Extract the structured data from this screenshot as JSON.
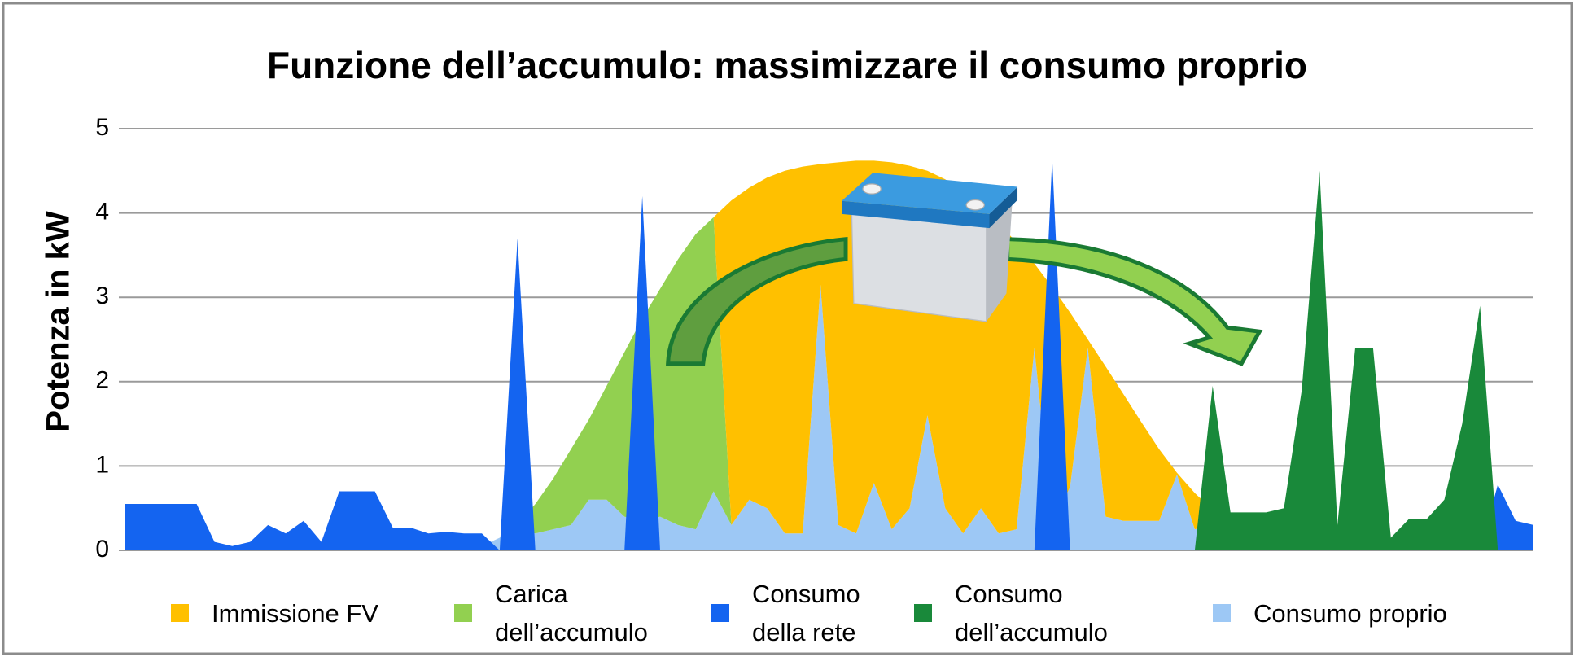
{
  "chart_data": {
    "type": "area",
    "title": "Funzione dell’accumulo: massimizzare il consumo proprio",
    "y_label": "Potenza in kW",
    "ylim": [
      0,
      5
    ],
    "yticks": [
      0,
      1,
      2,
      3,
      4,
      5
    ],
    "grid": true,
    "legend": "bottom",
    "series": [
      {
        "name": "Immissione FV",
        "color": "#FFC000",
        "stacked": true,
        "values": [
          0,
          0,
          0,
          0,
          0,
          0,
          0,
          0,
          0,
          0,
          0,
          0,
          0,
          0,
          0,
          0,
          0,
          0,
          0,
          0,
          0,
          0,
          0,
          0,
          0,
          0,
          0,
          0,
          0,
          0,
          0,
          0,
          0,
          0,
          3.85,
          3.7,
          3.92,
          4.3,
          4.35,
          1.43,
          4.3,
          4.42,
          3.82,
          4.35,
          4.06,
          2.9,
          3.9,
          4.05,
          3.58,
          3.68,
          3.4,
          1.0,
          2.82,
          2.07,
          0.1,
          1.78,
          1.5,
          1.17,
          0.85,
          0.02,
          0.43,
          0.18,
          0.12,
          0.1,
          0.02,
          0,
          0,
          0,
          0,
          0,
          0,
          0,
          0,
          0,
          0,
          0,
          0,
          0,
          0,
          0
        ]
      },
      {
        "name": "Carica dell’accumulo",
        "color": "#92D050",
        "stacked": true,
        "values": [
          0,
          0,
          0,
          0,
          0,
          0,
          0,
          0,
          0,
          0,
          0,
          0,
          0,
          0,
          0,
          0,
          0,
          0,
          0,
          0,
          0,
          0,
          0.05,
          0.35,
          0.6,
          0.9,
          0.95,
          1.35,
          1.95,
          2.4,
          2.7,
          3.15,
          3.5,
          3.25,
          0,
          0,
          0,
          0,
          0,
          0,
          0,
          0,
          0,
          0,
          0,
          0,
          0,
          0,
          0,
          0,
          0,
          0,
          0,
          0,
          0,
          0,
          0,
          0,
          0,
          0,
          0,
          0,
          0,
          0,
          0,
          0,
          0,
          0,
          0,
          0,
          0,
          0,
          0,
          0,
          0,
          0,
          0,
          0,
          0,
          0
        ]
      },
      {
        "name": "Consumo della rete",
        "color": "#1464F0",
        "stacked": false,
        "values": [
          0.55,
          0.55,
          0.55,
          0.55,
          0.55,
          0.1,
          0.05,
          0.1,
          0.3,
          0.2,
          0.35,
          0.1,
          0.7,
          0.7,
          0.7,
          0.27,
          0.27,
          0.2,
          0.22,
          0.2,
          0.2,
          0,
          3.7,
          0,
          0,
          0,
          0,
          0,
          0,
          4.2,
          0,
          0,
          0,
          0,
          0,
          0,
          0,
          0,
          0,
          0,
          0,
          0,
          0,
          0,
          0,
          0,
          0,
          0,
          0,
          0,
          0,
          0,
          4.65,
          0,
          0,
          0,
          0,
          0,
          0,
          0,
          0,
          0,
          0,
          0,
          0,
          0,
          0,
          0,
          0,
          0,
          0,
          0,
          0,
          0,
          0,
          0,
          0,
          0.78,
          0.35,
          0.3
        ]
      },
      {
        "name": "Consumo dell’accumulo",
        "color": "#19893A",
        "stacked": false,
        "values": [
          0,
          0,
          0,
          0,
          0,
          0,
          0,
          0,
          0,
          0,
          0,
          0,
          0,
          0,
          0,
          0,
          0,
          0,
          0,
          0,
          0,
          0,
          0,
          0,
          0,
          0,
          0,
          0,
          0,
          0,
          0,
          0,
          0,
          0,
          0,
          0,
          0,
          0,
          0,
          0,
          0,
          0,
          0,
          0,
          0,
          0,
          0,
          0,
          0,
          0,
          0,
          0,
          0,
          0,
          0,
          0,
          0,
          0,
          0,
          0,
          0,
          1.95,
          0.45,
          0.45,
          0.45,
          0.5,
          1.9,
          4.5,
          0.3,
          2.4,
          2.4,
          0.15,
          0.37,
          0.37,
          0.6,
          1.5,
          2.9,
          0,
          0,
          0
        ]
      },
      {
        "name": "Consumo proprio",
        "color": "#9DC8F5",
        "stacked": true,
        "values": [
          0,
          0,
          0,
          0,
          0,
          0,
          0,
          0,
          0,
          0,
          0,
          0,
          0,
          0,
          0,
          0,
          0,
          0,
          0,
          0,
          0.05,
          0.15,
          0.25,
          0.2,
          0.25,
          0.3,
          0.6,
          0.6,
          0.4,
          0.35,
          0.4,
          0.3,
          0.25,
          0.7,
          0.3,
          0.6,
          0.5,
          0.2,
          0.2,
          3.15,
          0.3,
          0.2,
          0.8,
          0.25,
          0.5,
          1.6,
          0.5,
          0.2,
          0.5,
          0.2,
          0.25,
          2.4,
          0.3,
          0.75,
          2.4,
          0.4,
          0.35,
          0.35,
          0.35,
          0.9,
          0.25,
          0.3,
          0.2,
          0.1,
          0.1,
          0.06,
          0.02,
          0,
          0,
          0,
          0,
          0,
          0,
          0,
          0,
          0,
          0,
          0,
          0,
          0
        ]
      }
    ]
  }
}
